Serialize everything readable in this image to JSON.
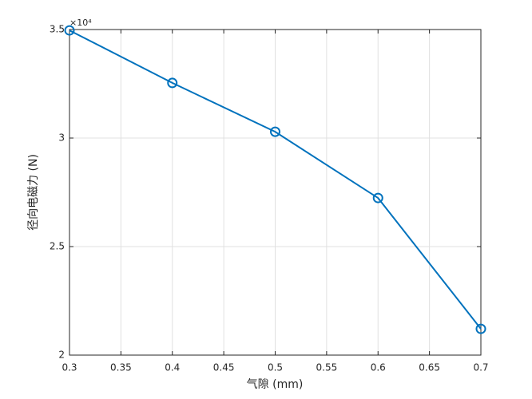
{
  "chart_data": {
    "type": "line",
    "x_label": "气隙 (mm)",
    "y_label": "径向电磁力 (N)",
    "y_exponent_label": "×10⁴",
    "x": [
      0.3,
      0.4,
      0.5,
      0.6,
      0.7
    ],
    "series": [
      {
        "color": "#0072bd",
        "values": [
          34960,
          32540,
          30290,
          27240,
          21210
        ]
      }
    ],
    "xlim": [
      0.3,
      0.7
    ],
    "xticks": [
      0.3,
      0.35,
      0.4,
      0.45,
      0.5,
      0.55,
      0.6,
      0.65,
      0.7
    ],
    "ylim": [
      20000,
      35000
    ],
    "yticks": [
      {
        "value": 20000,
        "label": "2"
      },
      {
        "value": 25000,
        "label": "2.5"
      },
      {
        "value": 30000,
        "label": "3"
      },
      {
        "value": 35000,
        "label": "3.5"
      }
    ],
    "grid": true
  }
}
